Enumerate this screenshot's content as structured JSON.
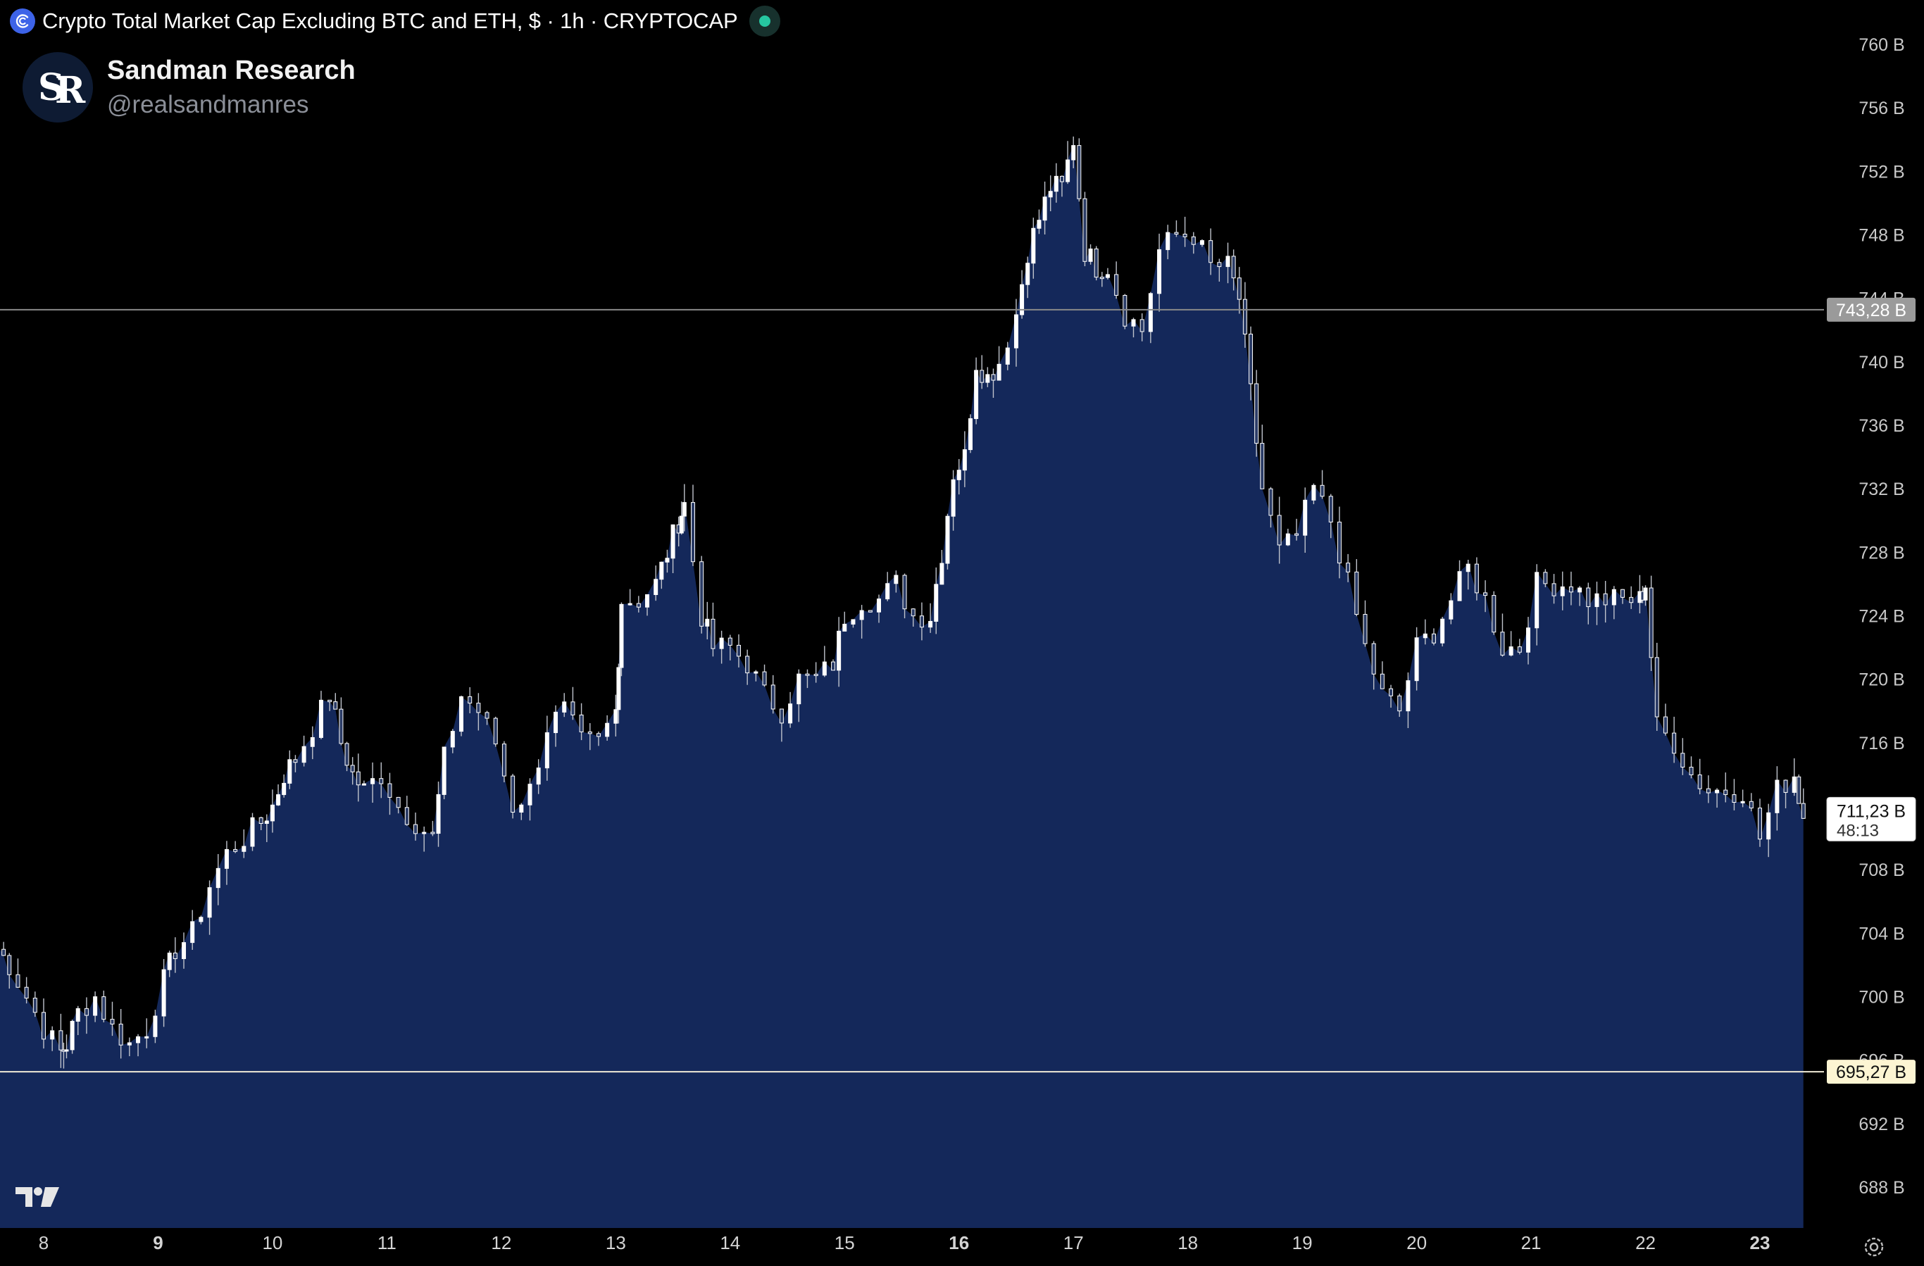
{
  "header": {
    "title": "Crypto Total Market Cap Excluding BTC and ETH, $ · 1h · CRYPTOCAP",
    "symbol_icon": "crypto-cap-icon",
    "status_color": "#26c6a0"
  },
  "author": {
    "name": "Sandman Research",
    "handle": "@realsandmanres",
    "avatar_monogram": "SR"
  },
  "colors": {
    "background": "#000000",
    "area_fill": "#14285a",
    "candle": "#ffffff",
    "grid_text": "#c8c8c8",
    "resistance_line": "#8a8a8a",
    "support_line": "#f0ead6",
    "support_label_bg": "#fdf5d3",
    "resistance_label_bg": "#9a9a9a"
  },
  "chart_data": {
    "type": "area",
    "title": "Crypto Total Market Cap Excluding BTC and ETH, $ · 1h · CRYPTOCAP",
    "interval": "1h",
    "y_unit": "B",
    "ylim": [
      686,
      762
    ],
    "y_ticks": [
      "760 B",
      "756 B",
      "752 B",
      "748 B",
      "744 B",
      "740 B",
      "736 B",
      "732 B",
      "728 B",
      "724 B",
      "720 B",
      "716 B",
      "712 B",
      "708 B",
      "704 B",
      "700 B",
      "696 B",
      "692 B",
      "688 B"
    ],
    "y_tick_values": [
      760,
      756,
      752,
      748,
      744,
      740,
      736,
      732,
      728,
      724,
      720,
      716,
      712,
      708,
      704,
      700,
      696,
      692,
      688
    ],
    "x_ticks": [
      {
        "label": "8",
        "day": 8,
        "bold": false
      },
      {
        "label": "9",
        "day": 9,
        "bold": true
      },
      {
        "label": "10",
        "day": 10,
        "bold": false
      },
      {
        "label": "11",
        "day": 11,
        "bold": false
      },
      {
        "label": "12",
        "day": 12,
        "bold": false
      },
      {
        "label": "13",
        "day": 13,
        "bold": false
      },
      {
        "label": "14",
        "day": 14,
        "bold": false
      },
      {
        "label": "15",
        "day": 15,
        "bold": false
      },
      {
        "label": "16",
        "day": 16,
        "bold": true
      },
      {
        "label": "17",
        "day": 17,
        "bold": false
      },
      {
        "label": "18",
        "day": 18,
        "bold": false
      },
      {
        "label": "19",
        "day": 19,
        "bold": false
      },
      {
        "label": "20",
        "day": 20,
        "bold": false
      },
      {
        "label": "21",
        "day": 21,
        "bold": false
      },
      {
        "label": "22",
        "day": 22,
        "bold": false
      },
      {
        "label": "23",
        "day": 23,
        "bold": true
      }
    ],
    "series": [
      {
        "x": [
          7.6,
          7.7,
          7.85,
          8.0,
          8.15,
          8.2,
          8.3,
          8.45,
          8.6,
          8.75,
          8.9,
          9.05,
          9.15,
          9.3,
          9.45,
          9.6,
          9.75,
          9.9,
          10.0,
          10.1,
          10.2,
          10.35,
          10.5,
          10.6,
          10.7,
          10.8,
          10.95,
          11.1,
          11.25,
          11.4,
          11.5,
          11.65,
          11.8,
          11.95,
          12.1,
          12.25,
          12.4,
          12.55,
          12.7,
          12.85,
          13.0,
          13.05,
          13.2,
          13.35,
          13.45,
          13.55,
          13.6,
          13.75,
          13.85,
          14.0,
          14.15,
          14.3,
          14.45,
          14.6,
          14.75,
          14.9,
          15.0,
          15.15,
          15.3,
          15.45,
          15.6,
          15.75,
          15.85,
          15.95,
          16.05,
          16.15,
          16.25,
          16.35,
          16.5,
          16.6,
          16.7,
          16.8,
          16.9,
          17.0,
          17.1,
          17.2,
          17.3,
          17.45,
          17.6,
          17.75,
          17.9,
          18.05,
          18.2,
          18.35,
          18.45,
          18.55,
          18.65,
          18.8,
          18.95,
          19.1,
          19.25,
          19.4,
          19.55,
          19.7,
          19.85,
          20.0,
          20.15,
          20.3,
          20.45,
          20.6,
          20.75,
          20.9,
          21.05,
          21.2,
          21.35,
          21.5,
          21.65,
          21.8,
          21.95,
          22.0,
          22.1,
          22.25,
          22.4,
          22.55,
          22.7,
          22.85,
          23.0,
          23.15,
          23.3,
          23.38
        ],
        "values": [
          703,
          702,
          700,
          698,
          696.5,
          697,
          699,
          700,
          698,
          697,
          698,
          701,
          703,
          704,
          707,
          709,
          710,
          711,
          712,
          714,
          715,
          717,
          719,
          716,
          714,
          713,
          714,
          712,
          711,
          710,
          715,
          719,
          718,
          716,
          712,
          713,
          717,
          718,
          716,
          716,
          718,
          725,
          725,
          726,
          728,
          730,
          731,
          724,
          722,
          722,
          721,
          719,
          718,
          720,
          720,
          721,
          724,
          725,
          725,
          726,
          724,
          724,
          728,
          733,
          734,
          740,
          739,
          740,
          743,
          747,
          749,
          751,
          751,
          754,
          747,
          746,
          746,
          743,
          742,
          747,
          748,
          748,
          746,
          746,
          744,
          738,
          732,
          728,
          729,
          732,
          730,
          726,
          722,
          719,
          718,
          722,
          723,
          725,
          727,
          725,
          722,
          722,
          726,
          726,
          726,
          725,
          725,
          725,
          725,
          726,
          717,
          716,
          714,
          713,
          713,
          713,
          710,
          713,
          714,
          711.23
        ]
      }
    ],
    "levels": [
      {
        "name": "resistance",
        "value": 743.28,
        "label": "743,28 B"
      },
      {
        "name": "support",
        "value": 695.27,
        "label": "695,27 B"
      }
    ],
    "last_price": {
      "value": 711.23,
      "label": "711,23 B",
      "countdown": "48:13"
    },
    "grid": false,
    "legend": "none"
  }
}
